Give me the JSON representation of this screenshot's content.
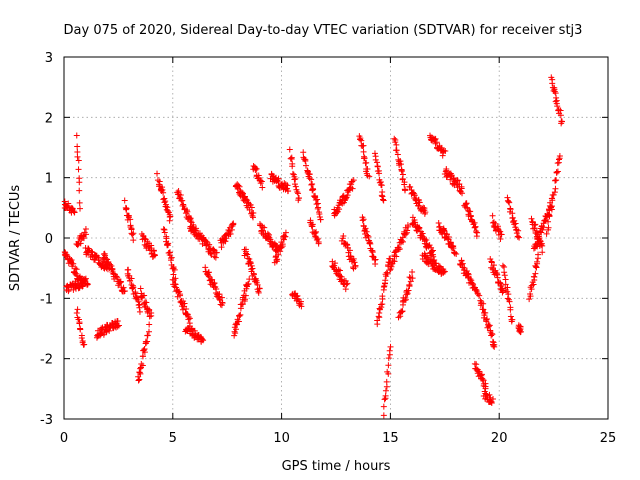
{
  "chart_data": {
    "type": "scatter",
    "title": "Day 075 of 2020, Sidereal Day-to-day VTEC variation (SDTVAR) for receiver stj3",
    "xlabel": "GPS time / hours",
    "ylabel": "SDTVAR / TECUs",
    "xlim": [
      0,
      25
    ],
    "ylim": [
      -3,
      3
    ],
    "x_ticks": [
      "0",
      "5",
      "10",
      "15",
      "20",
      "25"
    ],
    "y_ticks": [
      "-3",
      "-2",
      "-1",
      "0",
      "1",
      "2",
      "3"
    ],
    "grid": true,
    "marker": "+",
    "series_color": "#ff0000",
    "series": [
      {
        "name": "SDTVAR",
        "segments": [
          {
            "x0": 0.0,
            "x1": 0.5,
            "y0": 0.55,
            "y1": 0.45
          },
          {
            "x0": 0.0,
            "x1": 0.9,
            "y0": -0.2,
            "y1": -0.8
          },
          {
            "x0": 0.1,
            "x1": 1.1,
            "y0": -0.85,
            "y1": -0.7
          },
          {
            "x0": 0.6,
            "x1": 0.75,
            "y0": 1.7,
            "y1": 0.5
          },
          {
            "x0": 0.6,
            "x1": 1.0,
            "y0": -0.1,
            "y1": 0.1
          },
          {
            "x0": 0.6,
            "x1": 0.9,
            "y0": -1.2,
            "y1": -1.8
          },
          {
            "x0": 1.0,
            "x1": 2.0,
            "y0": -0.2,
            "y1": -0.5
          },
          {
            "x0": 1.5,
            "x1": 2.5,
            "y0": -1.6,
            "y1": -1.4
          },
          {
            "x0": 1.8,
            "x1": 2.8,
            "y0": -0.3,
            "y1": -0.9
          },
          {
            "x0": 2.8,
            "x1": 3.2,
            "y0": 0.6,
            "y1": 0.0
          },
          {
            "x0": 2.9,
            "x1": 3.5,
            "y0": -0.5,
            "y1": -1.2
          },
          {
            "x0": 3.4,
            "x1": 3.9,
            "y0": -2.4,
            "y1": -1.5
          },
          {
            "x0": 3.5,
            "x1": 4.0,
            "y0": -0.9,
            "y1": -1.3
          },
          {
            "x0": 3.6,
            "x1": 4.2,
            "y0": 0.0,
            "y1": -0.3
          },
          {
            "x0": 4.3,
            "x1": 4.9,
            "y0": 1.0,
            "y1": 0.3
          },
          {
            "x0": 4.6,
            "x1": 5.1,
            "y0": 0.1,
            "y1": -0.6
          },
          {
            "x0": 5.0,
            "x1": 5.8,
            "y0": -0.7,
            "y1": -1.4
          },
          {
            "x0": 5.2,
            "x1": 6.0,
            "y0": 0.8,
            "y1": 0.1
          },
          {
            "x0": 5.6,
            "x1": 6.4,
            "y0": -1.5,
            "y1": -1.7
          },
          {
            "x0": 5.8,
            "x1": 7.0,
            "y0": 0.2,
            "y1": -0.3
          },
          {
            "x0": 6.5,
            "x1": 7.3,
            "y0": -0.5,
            "y1": -1.1
          },
          {
            "x0": 7.2,
            "x1": 7.8,
            "y0": -0.1,
            "y1": 0.2
          },
          {
            "x0": 7.8,
            "x1": 8.5,
            "y0": -1.6,
            "y1": -0.7
          },
          {
            "x0": 7.9,
            "x1": 8.7,
            "y0": 0.9,
            "y1": 0.4
          },
          {
            "x0": 8.3,
            "x1": 9.0,
            "y0": -0.2,
            "y1": -0.9
          },
          {
            "x0": 8.7,
            "x1": 9.1,
            "y0": 1.2,
            "y1": 0.9
          },
          {
            "x0": 9.0,
            "x1": 9.8,
            "y0": 0.2,
            "y1": -0.2
          },
          {
            "x0": 9.5,
            "x1": 10.3,
            "y0": 1.0,
            "y1": 0.8
          },
          {
            "x0": 9.7,
            "x1": 10.2,
            "y0": -0.4,
            "y1": 0.1
          },
          {
            "x0": 10.4,
            "x1": 10.8,
            "y0": 1.4,
            "y1": 0.6
          },
          {
            "x0": 10.5,
            "x1": 10.9,
            "y0": -0.9,
            "y1": -1.1
          },
          {
            "x0": 11.0,
            "x1": 11.8,
            "y0": 1.4,
            "y1": 0.3
          },
          {
            "x0": 11.3,
            "x1": 11.7,
            "y0": 0.3,
            "y1": -0.1
          },
          {
            "x0": 12.3,
            "x1": 13.0,
            "y0": -0.4,
            "y1": -0.8
          },
          {
            "x0": 12.4,
            "x1": 13.3,
            "y0": 0.4,
            "y1": 0.9
          },
          {
            "x0": 12.8,
            "x1": 13.4,
            "y0": 0.0,
            "y1": -0.5
          },
          {
            "x0": 13.6,
            "x1": 14.0,
            "y0": 1.7,
            "y1": 1.0
          },
          {
            "x0": 13.7,
            "x1": 14.3,
            "y0": 0.3,
            "y1": -0.4
          },
          {
            "x0": 14.3,
            "x1": 14.7,
            "y0": 1.4,
            "y1": 0.6
          },
          {
            "x0": 14.4,
            "x1": 15.0,
            "y0": -1.4,
            "y1": -0.3
          },
          {
            "x0": 14.7,
            "x1": 15.0,
            "y0": -2.9,
            "y1": -1.8
          },
          {
            "x0": 15.0,
            "x1": 15.8,
            "y0": -0.5,
            "y1": 0.2
          },
          {
            "x0": 15.2,
            "x1": 15.7,
            "y0": 1.6,
            "y1": 0.8
          },
          {
            "x0": 15.4,
            "x1": 16.0,
            "y0": -1.3,
            "y1": -0.6
          },
          {
            "x0": 15.9,
            "x1": 16.6,
            "y0": 0.8,
            "y1": 0.4
          },
          {
            "x0": 16.0,
            "x1": 17.0,
            "y0": 0.3,
            "y1": -0.3
          },
          {
            "x0": 16.5,
            "x1": 17.5,
            "y0": -0.3,
            "y1": -0.6
          },
          {
            "x0": 16.8,
            "x1": 17.5,
            "y0": 1.7,
            "y1": 1.4
          },
          {
            "x0": 17.2,
            "x1": 18.0,
            "y0": 0.2,
            "y1": -0.2
          },
          {
            "x0": 17.5,
            "x1": 18.3,
            "y0": 1.1,
            "y1": 0.8
          },
          {
            "x0": 18.2,
            "x1": 19.0,
            "y0": -0.4,
            "y1": -0.9
          },
          {
            "x0": 18.4,
            "x1": 19.0,
            "y0": 0.6,
            "y1": 0.1
          },
          {
            "x0": 18.9,
            "x1": 19.4,
            "y0": -2.1,
            "y1": -2.5
          },
          {
            "x0": 19.1,
            "x1": 19.8,
            "y0": -1.0,
            "y1": -1.8
          },
          {
            "x0": 19.3,
            "x1": 19.7,
            "y0": -2.6,
            "y1": -2.7
          },
          {
            "x0": 19.6,
            "x1": 20.2,
            "y0": -0.4,
            "y1": -0.9
          },
          {
            "x0": 19.7,
            "x1": 20.1,
            "y0": 0.3,
            "y1": 0.0
          },
          {
            "x0": 20.2,
            "x1": 20.6,
            "y0": -0.5,
            "y1": -1.4
          },
          {
            "x0": 20.4,
            "x1": 20.9,
            "y0": 0.6,
            "y1": 0.0
          },
          {
            "x0": 20.9,
            "x1": 21.0,
            "y0": -1.5,
            "y1": -1.5
          },
          {
            "x0": 21.4,
            "x1": 21.8,
            "y0": -1.0,
            "y1": -0.3
          },
          {
            "x0": 21.5,
            "x1": 22.0,
            "y0": 0.3,
            "y1": -0.2
          },
          {
            "x0": 21.6,
            "x1": 22.4,
            "y0": -0.2,
            "y1": 0.6
          },
          {
            "x0": 22.2,
            "x1": 22.8,
            "y0": 0.1,
            "y1": 1.4
          },
          {
            "x0": 22.4,
            "x1": 22.9,
            "y0": 2.6,
            "y1": 1.9
          }
        ]
      }
    ]
  }
}
